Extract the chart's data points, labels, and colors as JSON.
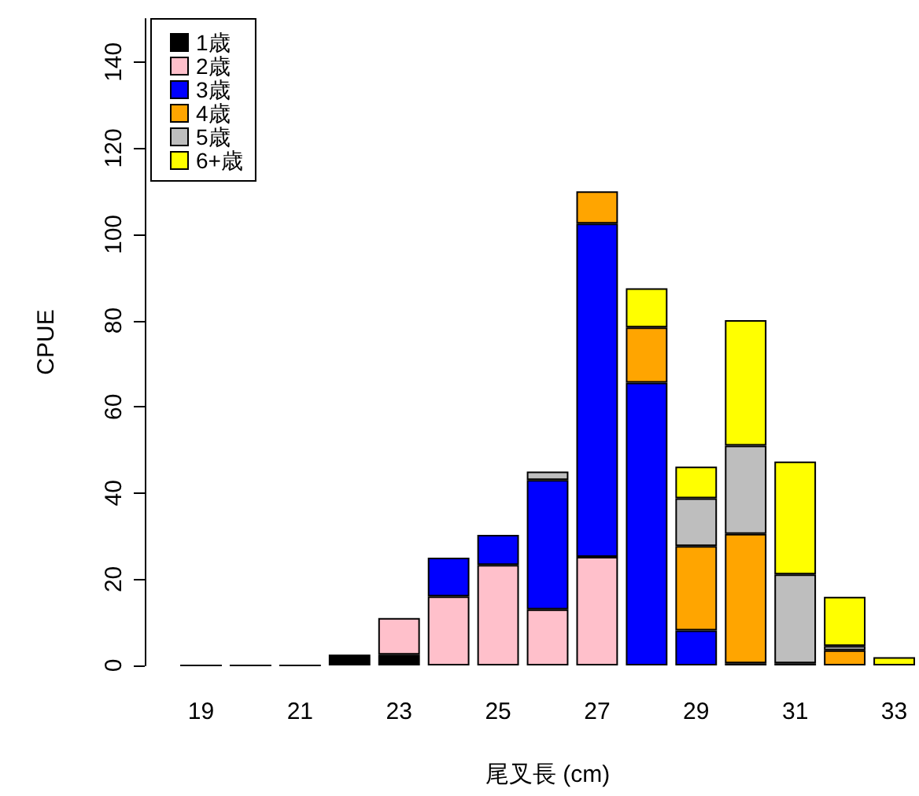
{
  "chart_data": {
    "type": "bar",
    "stacked": true,
    "xlabel": "尾叉長 (cm)",
    "ylabel": "CPUE",
    "categories": [
      "19",
      null,
      "21",
      null,
      "23",
      null,
      "25",
      null,
      "27",
      null,
      "29",
      null,
      "31",
      null,
      "33"
    ],
    "series": [
      {
        "name": "1歳",
        "color": "#000000",
        "values": [
          0,
          0,
          0,
          2.5,
          2.5,
          null,
          null,
          null,
          null,
          null,
          null,
          0.5,
          0.5,
          null,
          null
        ]
      },
      {
        "name": "2歳",
        "color": "#ffc0cb",
        "values": [
          null,
          null,
          null,
          null,
          8.5,
          16,
          23.3,
          13,
          25.2,
          null,
          null,
          null,
          null,
          null,
          null
        ]
      },
      {
        "name": "3歳",
        "color": "#0000ff",
        "values": [
          null,
          null,
          null,
          null,
          null,
          9,
          7,
          30,
          77.3,
          65.6,
          8.1,
          null,
          null,
          null,
          null
        ]
      },
      {
        "name": "4歳",
        "color": "#ffa500",
        "values": [
          null,
          null,
          null,
          null,
          null,
          null,
          null,
          null,
          7.5,
          12.8,
          19.6,
          30,
          null,
          3.5,
          null
        ]
      },
      {
        "name": "5歳",
        "color": "#bebebe",
        "values": [
          null,
          null,
          null,
          null,
          null,
          null,
          null,
          2,
          null,
          null,
          11.1,
          20.5,
          20.6,
          1,
          null
        ]
      },
      {
        "name": "6+歳",
        "color": "#ffff00",
        "values": [
          null,
          null,
          null,
          null,
          null,
          null,
          null,
          null,
          null,
          9.1,
          7.3,
          29.1,
          26.2,
          11.4,
          1.9
        ]
      }
    ],
    "ylim": [
      0,
      150
    ],
    "yticks": [
      0,
      20,
      40,
      60,
      80,
      100,
      120,
      140
    ],
    "grid": false,
    "legend": "top left"
  }
}
